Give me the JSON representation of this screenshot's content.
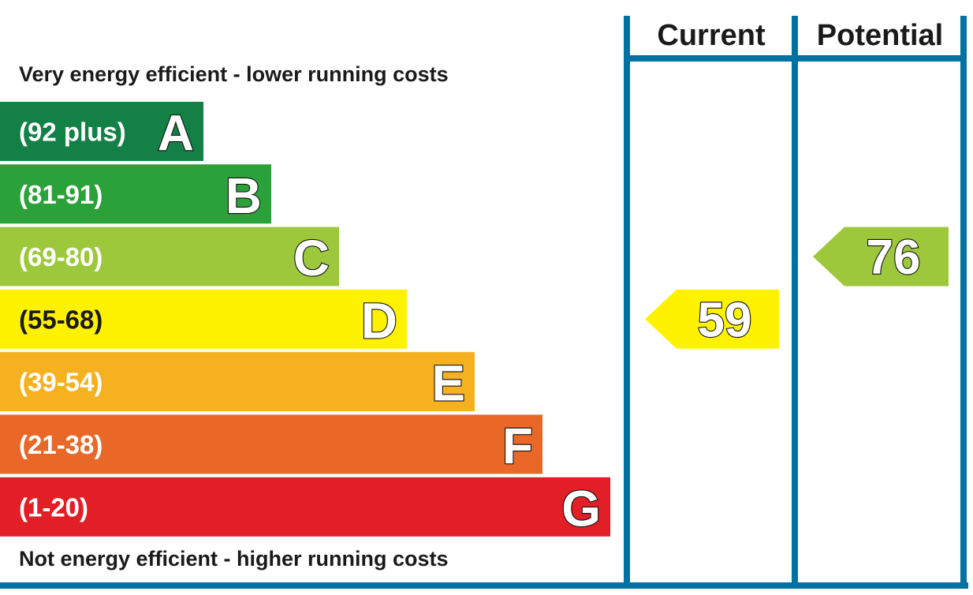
{
  "chart_data": {
    "type": "bar",
    "headers": {
      "current": "Current",
      "potential": "Potential"
    },
    "top_caption": "Very energy efficient - lower running costs",
    "bottom_caption": "Not energy efficient - higher running costs",
    "bands": [
      {
        "letter": "A",
        "range": "(92 plus)",
        "min": 92,
        "max": 100,
        "color": "#138046"
      },
      {
        "letter": "B",
        "range": "(81-91)",
        "min": 81,
        "max": 91,
        "color": "#2ba139"
      },
      {
        "letter": "C",
        "range": "(69-80)",
        "min": 69,
        "max": 80,
        "color": "#9dc83c"
      },
      {
        "letter": "D",
        "range": "(55-68)",
        "min": 55,
        "max": 68,
        "color": "#fff200"
      },
      {
        "letter": "E",
        "range": "(39-54)",
        "min": 39,
        "max": 54,
        "color": "#f5b11f"
      },
      {
        "letter": "F",
        "range": "(21-38)",
        "min": 21,
        "max": 38,
        "color": "#ea6827"
      },
      {
        "letter": "G",
        "range": "(1-20)",
        "min": 1,
        "max": 20,
        "color": "#e21e26"
      }
    ],
    "current": {
      "value": 59,
      "band": "D"
    },
    "potential": {
      "value": 76,
      "band": "C"
    },
    "frame_color": "#0071a0"
  }
}
